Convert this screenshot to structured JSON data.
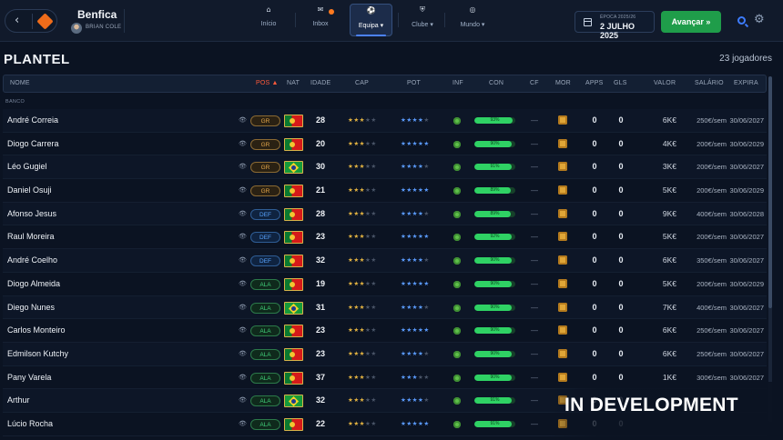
{
  "header": {
    "club_name": "Benfica",
    "manager_name": "BRIAN COLE",
    "season_label": "ÉPOCA 2025/26",
    "date": "2 JULHO 2025",
    "advance_label": "Avançar »",
    "tabs": [
      {
        "label": "Início",
        "icon": "home-icon"
      },
      {
        "label": "Inbox",
        "icon": "mail-icon"
      },
      {
        "label": "Equipa ▾",
        "icon": "team-icon"
      },
      {
        "label": "Clube ▾",
        "icon": "club-icon"
      },
      {
        "label": "Mundo ▾",
        "icon": "globe-icon"
      }
    ],
    "active_tab": "Equipa",
    "accent_color": "#1f9d4a"
  },
  "squad": {
    "title": "PLANTEL",
    "count": "23 jogadores",
    "section_label": "BANCO",
    "columns": [
      "NOME",
      "POS ▲",
      "NAT",
      "IDADE",
      "CAP",
      "POT",
      "INF",
      "CON",
      "CF",
      "MOR",
      "APPS",
      "GLS",
      "VALOR",
      "SALÁRIO",
      "EXPIRA"
    ],
    "players": [
      {
        "name": "André Correia",
        "pos": "GR",
        "nat": "pt",
        "age": "28",
        "cap": 3,
        "pot": 4,
        "con": 93,
        "con_label": "93%",
        "cf": "—",
        "apps": "0",
        "gls": "0",
        "value": "6K€",
        "salary": "250€/sem",
        "expires": "30/06/2027"
      },
      {
        "name": "Diogo Carrera",
        "pos": "GR",
        "nat": "pt",
        "age": "20",
        "cap": 3,
        "pot": 5,
        "con": 90,
        "con_label": "90%",
        "cf": "—",
        "apps": "0",
        "gls": "0",
        "value": "4K€",
        "salary": "200€/sem",
        "expires": "30/06/2029"
      },
      {
        "name": "Léo Gugiel",
        "pos": "GR",
        "nat": "br",
        "age": "30",
        "cap": 3,
        "pot": 4,
        "con": 91,
        "con_label": "91%",
        "cf": "—",
        "apps": "0",
        "gls": "0",
        "value": "3K€",
        "salary": "200€/sem",
        "expires": "30/06/2027"
      },
      {
        "name": "Daniel Osuji",
        "pos": "GR",
        "nat": "pt",
        "age": "21",
        "cap": 3,
        "pot": 5,
        "con": 89,
        "con_label": "89%",
        "cf": "—",
        "apps": "0",
        "gls": "0",
        "value": "5K€",
        "salary": "200€/sem",
        "expires": "30/06/2029"
      },
      {
        "name": "Afonso Jesus",
        "pos": "DEF",
        "nat": "pt",
        "age": "28",
        "cap": 3,
        "pot": 4,
        "con": 89,
        "con_label": "89%",
        "cf": "—",
        "apps": "0",
        "gls": "0",
        "value": "9K€",
        "salary": "400€/sem",
        "expires": "30/06/2028"
      },
      {
        "name": "Raul Moreira",
        "pos": "DEF",
        "nat": "pt",
        "age": "23",
        "cap": 3,
        "pot": 5,
        "con": 92,
        "con_label": "92%",
        "cf": "—",
        "apps": "0",
        "gls": "0",
        "value": "5K€",
        "salary": "200€/sem",
        "expires": "30/06/2027"
      },
      {
        "name": "André Coelho",
        "pos": "DEF",
        "nat": "pt",
        "age": "32",
        "cap": 3,
        "pot": 4,
        "con": 90,
        "con_label": "90%",
        "cf": "—",
        "apps": "0",
        "gls": "0",
        "value": "6K€",
        "salary": "350€/sem",
        "expires": "30/06/2027"
      },
      {
        "name": "Diogo Almeida",
        "pos": "ALA",
        "nat": "pt",
        "age": "19",
        "cap": 3,
        "pot": 5,
        "con": 90,
        "con_label": "90%",
        "cf": "—",
        "apps": "0",
        "gls": "0",
        "value": "5K€",
        "salary": "200€/sem",
        "expires": "30/06/2029"
      },
      {
        "name": "Diego Nunes",
        "pos": "ALA",
        "nat": "br",
        "age": "31",
        "cap": 3,
        "pot": 4,
        "con": 90,
        "con_label": "90%",
        "cf": "—",
        "apps": "0",
        "gls": "0",
        "value": "7K€",
        "salary": "400€/sem",
        "expires": "30/06/2027"
      },
      {
        "name": "Carlos Monteiro",
        "pos": "ALA",
        "nat": "pt",
        "age": "23",
        "cap": 3,
        "pot": 5,
        "con": 90,
        "con_label": "90%",
        "cf": "—",
        "apps": "0",
        "gls": "0",
        "value": "6K€",
        "salary": "250€/sem",
        "expires": "30/06/2027"
      },
      {
        "name": "Edmilson Kutchy",
        "pos": "ALA",
        "nat": "pt",
        "age": "23",
        "cap": 3,
        "pot": 4,
        "con": 90,
        "con_label": "90%",
        "cf": "—",
        "apps": "0",
        "gls": "0",
        "value": "6K€",
        "salary": "250€/sem",
        "expires": "30/06/2027"
      },
      {
        "name": "Pany Varela",
        "pos": "ALA",
        "nat": "pt",
        "age": "37",
        "cap": 3,
        "pot": 3,
        "con": 90,
        "con_label": "90%",
        "cf": "—",
        "apps": "0",
        "gls": "0",
        "value": "1K€",
        "salary": "300€/sem",
        "expires": "30/06/2027"
      },
      {
        "name": "Arthur",
        "pos": "ALA",
        "nat": "br",
        "age": "32",
        "cap": 3,
        "pot": 4,
        "con": 91,
        "con_label": "91%",
        "cf": "—",
        "apps": "0",
        "gls": "0",
        "value": "",
        "salary": "",
        "expires": ""
      },
      {
        "name": "Lúcio Rocha",
        "pos": "ALA",
        "nat": "pt",
        "age": "22",
        "cap": 3,
        "pot": 5,
        "con": 91,
        "con_label": "91%",
        "cf": "—",
        "apps": "0",
        "gls": "0",
        "value": "",
        "salary": "",
        "expires": ""
      }
    ]
  },
  "overlay": {
    "text": "IN DEVELOPMENT"
  }
}
